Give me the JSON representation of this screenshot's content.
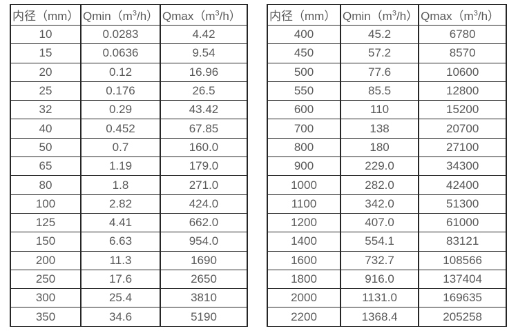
{
  "colors": {
    "background": "#ffffff",
    "grid_border": "#262626",
    "text": "#595959"
  },
  "tables": [
    {
      "name": "flow-table-small-diameters",
      "headers": [
        "内径（mm）",
        "Qmin（m³/h）",
        "Qmax（m³/h）"
      ],
      "rows": [
        [
          "10",
          "0.0283",
          "4.42"
        ],
        [
          "15",
          "0.0636",
          "9.54"
        ],
        [
          "20",
          "0.12",
          "16.96"
        ],
        [
          "25",
          "0.176",
          "26.5"
        ],
        [
          "32",
          "0.29",
          "43.42"
        ],
        [
          "40",
          "0.452",
          "67.85"
        ],
        [
          "50",
          "0.7",
          "160.0"
        ],
        [
          "65",
          "1.19",
          "179.0"
        ],
        [
          "80",
          "1.8",
          "271.0"
        ],
        [
          "100",
          "2.82",
          "424.0"
        ],
        [
          "125",
          "4.41",
          "662.0"
        ],
        [
          "150",
          "6.63",
          "954.0"
        ],
        [
          "200",
          "11.3",
          "1690"
        ],
        [
          "250",
          "17.6",
          "2650"
        ],
        [
          "300",
          "25.4",
          "3810"
        ],
        [
          "350",
          "34.6",
          "5190"
        ]
      ]
    },
    {
      "name": "flow-table-large-diameters",
      "headers": [
        "内径（mm）",
        "Qmin（m³/h）",
        "Qmax（m³/h）"
      ],
      "rows": [
        [
          "400",
          "45.2",
          "6780"
        ],
        [
          "450",
          "57.2",
          "8570"
        ],
        [
          "500",
          "77.6",
          "10600"
        ],
        [
          "550",
          "85.5",
          "12800"
        ],
        [
          "600",
          "110",
          "15200"
        ],
        [
          "700",
          "138",
          "20700"
        ],
        [
          "800",
          "180",
          "27100"
        ],
        [
          "900",
          "229.0",
          "34300"
        ],
        [
          "1000",
          "282.0",
          "42400"
        ],
        [
          "1100",
          "342.0",
          "51300"
        ],
        [
          "1200",
          "407.0",
          "61000"
        ],
        [
          "1400",
          "554.1",
          "83121"
        ],
        [
          "1600",
          "732.7",
          "108566"
        ],
        [
          "1800",
          "916.0",
          "137404"
        ],
        [
          "2000",
          "1131.0",
          "169635"
        ],
        [
          "2200",
          "1368.4",
          "205258"
        ]
      ]
    }
  ]
}
